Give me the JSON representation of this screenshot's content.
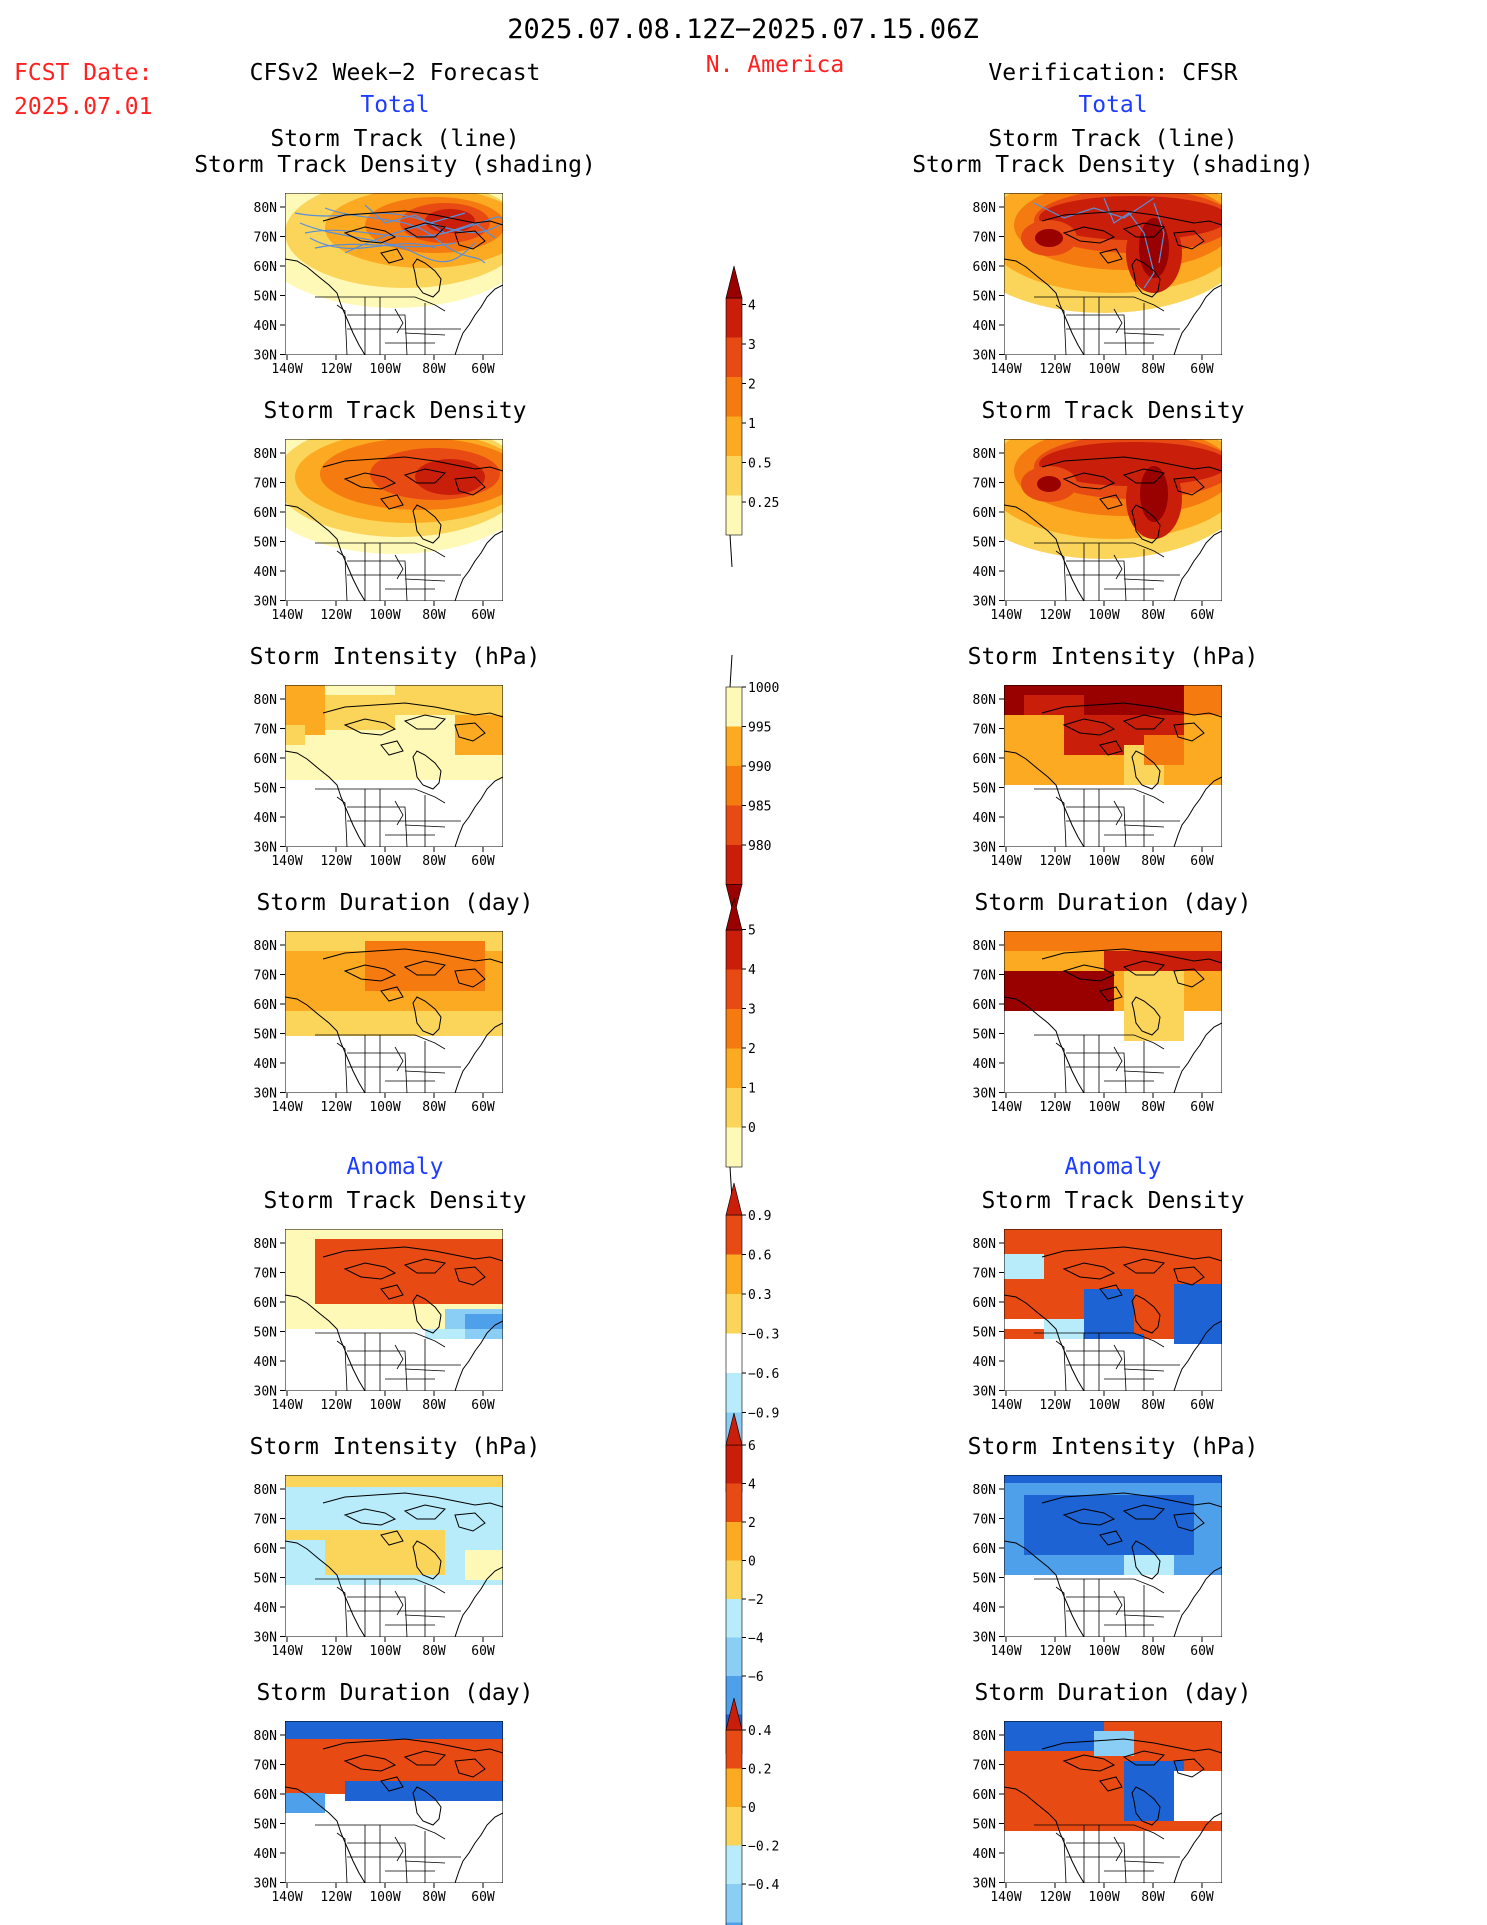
{
  "header": {
    "title": "2025.07.08.12Z−2025.07.15.06Z",
    "fcst_label": "FCST Date:",
    "fcst_date": "2025.07.01",
    "model": "CFSv2 Week−2 Forecast",
    "region": "N. America",
    "verification": "Verification: CFSR"
  },
  "sections": {
    "total": "Total",
    "anomaly": "Anomaly"
  },
  "panel_titles": {
    "track_line": "Storm Track (line)",
    "track_shading": "Storm Track Density (shading)",
    "density": "Storm Track Density",
    "intensity": "Storm Intensity (hPa)",
    "duration": "Storm Duration (day)"
  },
  "axes": {
    "lat_ticks": [
      "80N",
      "70N",
      "60N",
      "50N",
      "40N",
      "30N"
    ],
    "lon_ticks": [
      "140W",
      "120W",
      "100W",
      "80W",
      "60W"
    ]
  },
  "colorbars": {
    "density_total": [
      "0.25",
      "0.5",
      "1",
      "2",
      "3",
      "4"
    ],
    "intensity_total": [
      "1000",
      "995",
      "990",
      "985",
      "980"
    ],
    "duration_total": [
      "0",
      "1",
      "2",
      "3",
      "4",
      "5"
    ],
    "density_anom": [
      "0.9",
      "0.6",
      "0.3",
      "−0.3",
      "−0.6",
      "−0.9"
    ],
    "intensity_anom": [
      "6",
      "4",
      "2",
      "0",
      "−2",
      "−4",
      "−6"
    ],
    "duration_anom": [
      "0.4",
      "0.2",
      "0",
      "−0.2",
      "−0.4"
    ]
  },
  "colors": {
    "title_red": "#ff2020",
    "label_blue": "#1e3cff",
    "track_line": "#5a8fd8",
    "warm": [
      "#fff9b8",
      "#fbd55a",
      "#fbaa22",
      "#f57a10",
      "#e84a14",
      "#c81e0a",
      "#990000"
    ],
    "cool": [
      "#b8ecfa",
      "#8acdf5",
      "#4fa0ea",
      "#1e63d4"
    ]
  }
}
